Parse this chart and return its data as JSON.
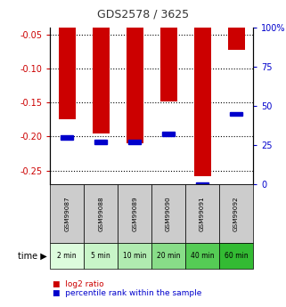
{
  "title": "GDS2578 / 3625",
  "samples": [
    "GSM99087",
    "GSM99088",
    "GSM99089",
    "GSM99090",
    "GSM99091",
    "GSM99092"
  ],
  "time_labels": [
    "2 min",
    "5 min",
    "10 min",
    "20 min",
    "40 min",
    "60 min"
  ],
  "log2_ratio": [
    -0.175,
    -0.195,
    -0.21,
    -0.148,
    -0.258,
    -0.072
  ],
  "percentile_rank": [
    30,
    27,
    27,
    32,
    0,
    45
  ],
  "ylim_left": [
    -0.27,
    -0.04
  ],
  "ylim_right": [
    0,
    100
  ],
  "yticks_left": [
    -0.25,
    -0.2,
    -0.15,
    -0.1,
    -0.05
  ],
  "yticks_right": [
    0,
    25,
    50,
    75,
    100
  ],
  "ytick_labels_left": [
    "-0.25",
    "-0.20",
    "-0.15",
    "-0.10",
    "-0.05"
  ],
  "ytick_labels_right": [
    "0",
    "25",
    "50",
    "75",
    "100%"
  ],
  "bar_color": "#cc0000",
  "blue_color": "#0000cc",
  "title_color": "#333333",
  "left_tick_color": "#cc0000",
  "right_tick_color": "#0000cc",
  "sample_bg_color": "#cccccc",
  "time_bg_colors": [
    "#ddfcdd",
    "#c8f5c8",
    "#b0ebb0",
    "#88dd88",
    "#55cc55",
    "#33bb33"
  ],
  "bar_width": 0.5
}
